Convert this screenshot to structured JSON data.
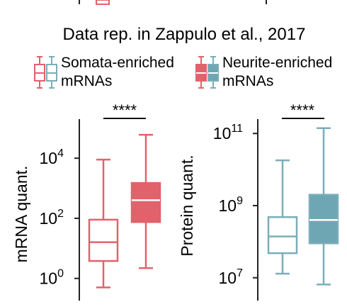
{
  "title": "Data rep. in Zappulo et al., 2017",
  "colors": {
    "somata": "#e2626c",
    "neurite": "#7aaeb9",
    "neurite_fill": "#6ea6b4",
    "somata_fill": "#e2626c"
  },
  "legend": {
    "somata_label_line1": "Somata-enriched",
    "somata_label_line2": "mRNAs",
    "neurite_label_line1": "Neurite-enriched",
    "neurite_label_line2": "mRNAs"
  },
  "chart_data": [
    {
      "type": "box",
      "ylabel": "mRNA quant.",
      "yscale": "log",
      "ylim": [
        0.35,
        200000
      ],
      "yticks": [
        {
          "base": "10",
          "exp": "0",
          "value": 1
        },
        {
          "base": "10",
          "exp": "2",
          "value": 100
        },
        {
          "base": "10",
          "exp": "4",
          "value": 10000
        }
      ],
      "significance": "****",
      "series": [
        {
          "whisker_low": 0.5,
          "q1": 3.8,
          "median": 16,
          "q3": 90,
          "whisker_high": 9000
        },
        {
          "whisker_low": 2.2,
          "q1": 75,
          "median": 400,
          "q3": 1500,
          "whisker_high": 60000
        }
      ]
    },
    {
      "type": "box",
      "ylabel": "Protein quant.",
      "yscale": "log",
      "ylim": [
        4000000,
        250000000000
      ],
      "yticks": [
        {
          "base": "10",
          "exp": "7",
          "value": 10000000
        },
        {
          "base": "10",
          "exp": "9",
          "value": 1000000000
        },
        {
          "base": "10",
          "exp": "11",
          "value": 100000000000
        }
      ],
      "significance": "****",
      "series": [
        {
          "whisker_low": 13000000,
          "q1": 48000000,
          "median": 140000000,
          "q3": 480000000,
          "whisker_high": 18000000000
        },
        {
          "whisker_low": 6500000,
          "q1": 90000000,
          "median": 400000000,
          "q3": 2000000000,
          "whisker_high": 140000000000
        }
      ]
    }
  ]
}
